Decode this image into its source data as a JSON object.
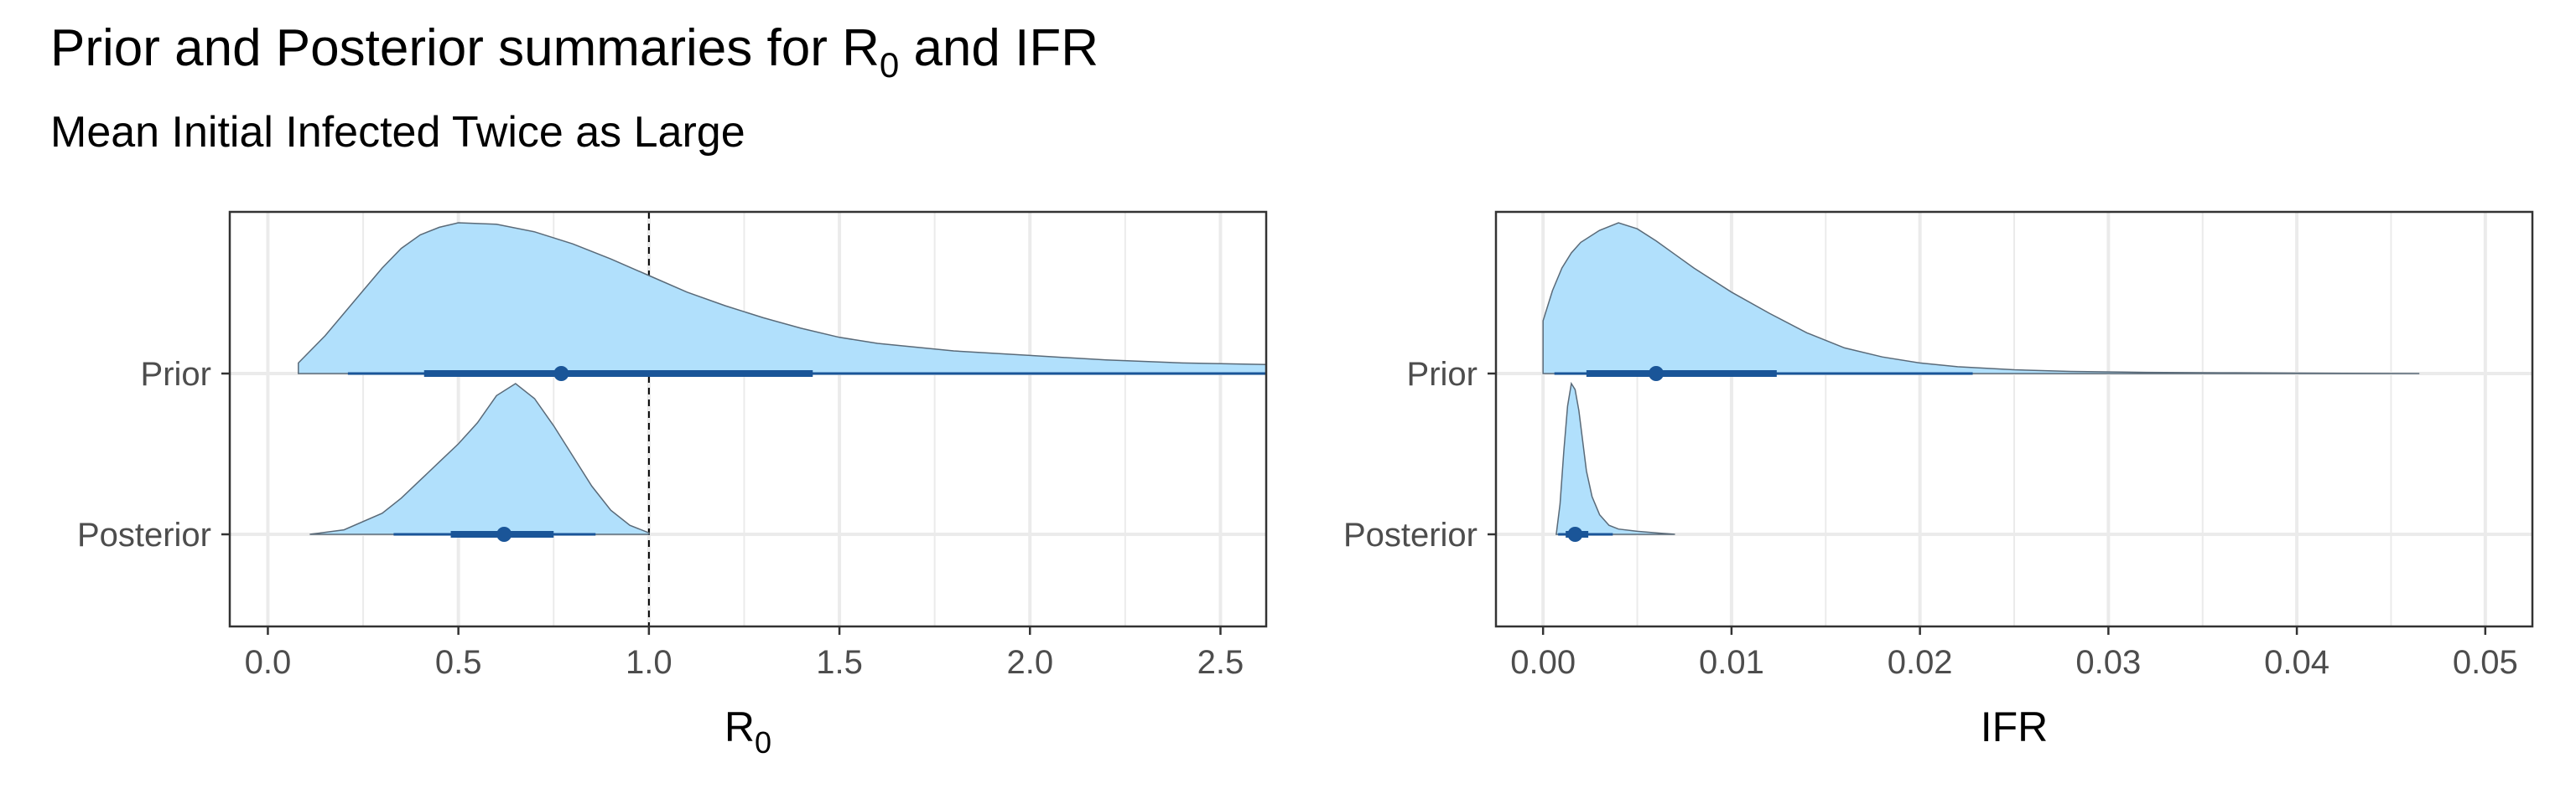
{
  "title": {
    "pre": "Prior and Posterior summaries for R",
    "sub": "0",
    "post": " and IFR"
  },
  "subtitle": "Mean Initial Infected Twice as Large",
  "colors": {
    "density_fill": "#b1e0fc",
    "density_stroke": "#5a6a78",
    "interval": "#1a5598",
    "grid": "#ebebeb",
    "panel_border": "#333333",
    "reference_line": "#000000"
  },
  "chart_data": [
    {
      "type": "halfeye",
      "xlabel": {
        "main": "R",
        "sub": "0"
      },
      "xlim": [
        -0.1,
        2.62
      ],
      "xticks": [
        0.0,
        0.5,
        1.0,
        1.5,
        2.0,
        2.5
      ],
      "xtick_labels": [
        "0.0",
        "0.5",
        "1.0",
        "1.5",
        "2.0",
        "2.5"
      ],
      "categories": [
        "Prior",
        "Posterior"
      ],
      "grid": true,
      "reference_line": 1.0,
      "series": [
        {
          "name": "Prior",
          "point": 0.77,
          "interval_66": [
            0.41,
            1.43
          ],
          "interval_95": [
            0.21,
            2.62
          ],
          "density": {
            "x": [
              0.08,
              0.15,
              0.2,
              0.25,
              0.3,
              0.35,
              0.4,
              0.45,
              0.5,
              0.6,
              0.7,
              0.8,
              0.9,
              1.0,
              1.1,
              1.2,
              1.3,
              1.4,
              1.5,
              1.6,
              1.8,
              2.0,
              2.2,
              2.4,
              2.62
            ],
            "y": [
              0.07,
              0.25,
              0.4,
              0.55,
              0.7,
              0.83,
              0.92,
              0.97,
              1.0,
              0.99,
              0.94,
              0.86,
              0.76,
              0.65,
              0.54,
              0.45,
              0.37,
              0.3,
              0.24,
              0.2,
              0.15,
              0.12,
              0.09,
              0.07,
              0.06
            ]
          }
        },
        {
          "name": "Posterior",
          "point": 0.62,
          "interval_66": [
            0.48,
            0.75
          ],
          "interval_95": [
            0.33,
            0.86
          ],
          "density": {
            "x": [
              0.11,
              0.2,
              0.3,
              0.35,
              0.4,
              0.45,
              0.5,
              0.55,
              0.6,
              0.65,
              0.7,
              0.75,
              0.8,
              0.85,
              0.9,
              0.95,
              1.0
            ],
            "y": [
              0.0,
              0.03,
              0.14,
              0.24,
              0.36,
              0.48,
              0.6,
              0.74,
              0.92,
              1.0,
              0.9,
              0.72,
              0.52,
              0.32,
              0.16,
              0.06,
              0.01
            ]
          }
        }
      ]
    },
    {
      "type": "halfeye",
      "xlabel": {
        "main": "IFR",
        "sub": ""
      },
      "xlim": [
        -0.0025,
        0.0525
      ],
      "xticks": [
        0.0,
        0.01,
        0.02,
        0.03,
        0.04,
        0.05
      ],
      "xtick_labels": [
        "0.00",
        "0.01",
        "0.02",
        "0.03",
        "0.04",
        "0.05"
      ],
      "categories": [
        "Prior",
        "Posterior"
      ],
      "grid": true,
      "series": [
        {
          "name": "Prior",
          "point": 0.006,
          "interval_66": [
            0.0023,
            0.0124
          ],
          "interval_95": [
            0.0006,
            0.0228
          ],
          "density": {
            "x": [
              0.0,
              0.0005,
              0.001,
              0.0015,
              0.002,
              0.003,
              0.004,
              0.005,
              0.006,
              0.007,
              0.008,
              0.009,
              0.01,
              0.012,
              0.014,
              0.016,
              0.018,
              0.02,
              0.022,
              0.025,
              0.028,
              0.032,
              0.036,
              0.04,
              0.0465
            ],
            "y": [
              0.35,
              0.55,
              0.7,
              0.8,
              0.87,
              0.95,
              1.0,
              0.96,
              0.88,
              0.79,
              0.7,
              0.62,
              0.54,
              0.4,
              0.27,
              0.17,
              0.11,
              0.07,
              0.045,
              0.025,
              0.014,
              0.008,
              0.005,
              0.003,
              0.0
            ]
          }
        },
        {
          "name": "Posterior",
          "point": 0.0017,
          "interval_66": [
            0.0012,
            0.0024
          ],
          "interval_95": [
            0.0008,
            0.0037
          ],
          "density": {
            "x": [
              0.0007,
              0.0009,
              0.0011,
              0.0013,
              0.0015,
              0.0017,
              0.0019,
              0.0021,
              0.0023,
              0.0026,
              0.003,
              0.0035,
              0.004,
              0.005,
              0.006,
              0.007
            ],
            "y": [
              0.0,
              0.2,
              0.55,
              0.85,
              1.0,
              0.96,
              0.82,
              0.62,
              0.42,
              0.25,
              0.13,
              0.06,
              0.035,
              0.02,
              0.01,
              0.0
            ]
          }
        }
      ]
    }
  ]
}
